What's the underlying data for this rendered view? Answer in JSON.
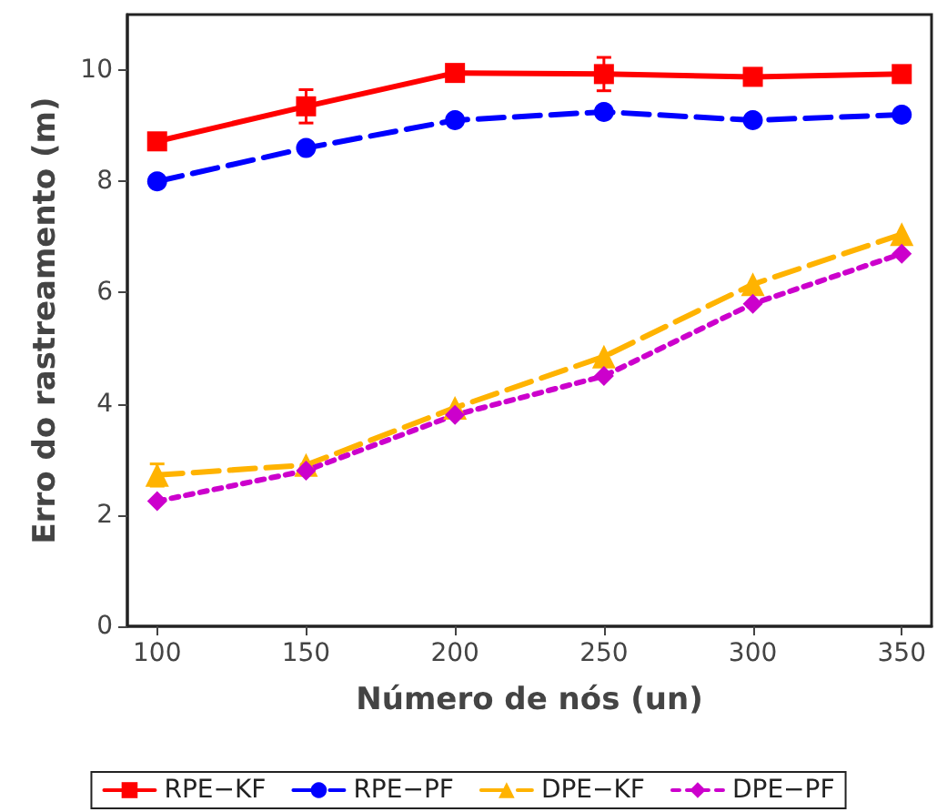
{
  "chart_data": {
    "type": "line",
    "xlabel": "Número de nós (un)",
    "ylabel": "Erro do rastreamento (m)",
    "x": [
      100,
      150,
      200,
      250,
      300,
      350
    ],
    "series": [
      {
        "name": "RPE−KF",
        "color": "#ff0000",
        "marker": "square",
        "line_style": "solid",
        "values": [
          8.72,
          9.35,
          9.95,
          9.93,
          9.88,
          9.93
        ],
        "errors": [
          null,
          0.3,
          null,
          0.3,
          null,
          null
        ]
      },
      {
        "name": "RPE−PF",
        "color": "#0000ff",
        "marker": "circle",
        "line_style": "dashed",
        "values": [
          8.0,
          8.6,
          9.1,
          9.25,
          9.1,
          9.2
        ]
      },
      {
        "name": "DPE−KF",
        "color": "#ffb300",
        "marker": "triangle",
        "line_style": "dashed",
        "values": [
          2.72,
          2.9,
          3.93,
          4.85,
          6.15,
          7.05
        ],
        "errors": [
          0.2,
          null,
          null,
          null,
          null,
          null
        ]
      },
      {
        "name": "DPE−PF",
        "color": "#cc00cc",
        "marker": "diamond",
        "line_style": "dotted",
        "values": [
          2.25,
          2.8,
          3.8,
          4.5,
          5.8,
          6.7
        ]
      }
    ],
    "xlim": [
      90,
      360
    ],
    "xticks": [
      100,
      150,
      200,
      250,
      300,
      350
    ],
    "ylim": [
      0,
      11
    ],
    "yticks": [
      0,
      2,
      4,
      6,
      8,
      10
    ],
    "grid": false,
    "legend": "bottom"
  }
}
